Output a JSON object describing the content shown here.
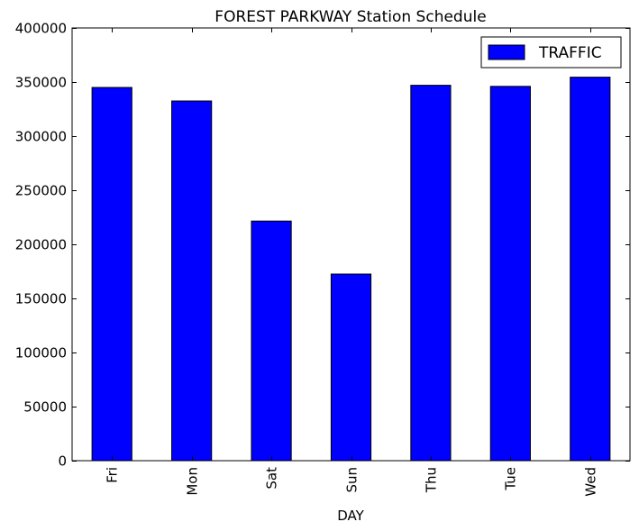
{
  "chart_data": {
    "type": "bar",
    "title": "FOREST PARKWAY Station Schedule",
    "xlabel": "DAY",
    "ylabel": "",
    "categories": [
      "Fri",
      "Mon",
      "Sat",
      "Sun",
      "Thu",
      "Tue",
      "Wed"
    ],
    "series": [
      {
        "name": "TRAFFIC",
        "color": "#0000ff",
        "values": [
          345000,
          332500,
          221500,
          172500,
          347000,
          346000,
          354500
        ]
      }
    ],
    "ylim": [
      0,
      400000
    ],
    "yticks": [
      0,
      50000,
      100000,
      150000,
      200000,
      250000,
      300000,
      350000,
      400000
    ],
    "grid": false,
    "legend_position": "top-right"
  }
}
